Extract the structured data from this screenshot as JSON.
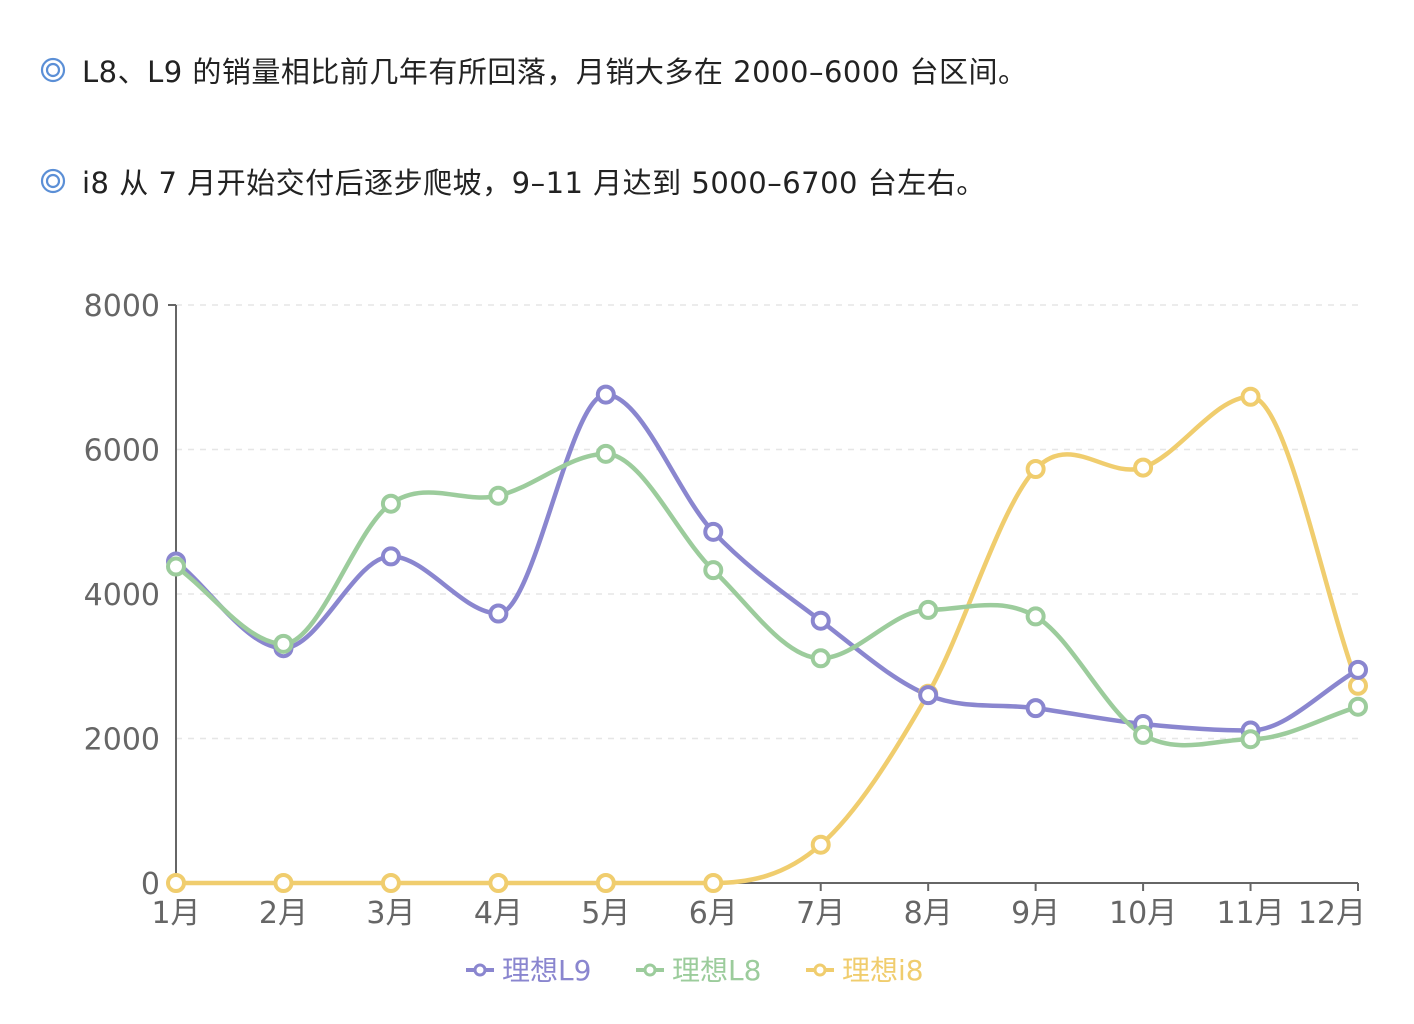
{
  "bullets": [
    {
      "icon": "double-circle-icon",
      "text": "L8、L9 的销量相比前几年有所回落，月销大多在 2000–6000 台区间。"
    },
    {
      "icon": "double-circle-icon",
      "text": "i8 从 7 月开始交付后逐步爬坡，9–11 月达到 5000–6700 台左右。"
    }
  ],
  "colors": {
    "bullet_icon": "#5b8fd6",
    "axis": "#666666",
    "grid": "#e6e6e6"
  },
  "chart_data": {
    "type": "line",
    "categories": [
      "1月",
      "2月",
      "3月",
      "4月",
      "5月",
      "6月",
      "7月",
      "8月",
      "9月",
      "10月",
      "11月",
      "12月"
    ],
    "ylim": [
      0,
      8000
    ],
    "yticks": [
      "0",
      "2000",
      "4000",
      "6000",
      "8000"
    ],
    "grid": true,
    "smooth": true,
    "legend_position": "bottom",
    "series": [
      {
        "name": "理想L9",
        "color": "#8a86cf",
        "values": [
          4450,
          3250,
          4520,
          3730,
          6760,
          4860,
          3630,
          2600,
          2420,
          2200,
          2110,
          2950
        ]
      },
      {
        "name": "理想L8",
        "color": "#9ccc9c",
        "values": [
          4380,
          3310,
          5250,
          5360,
          5940,
          4330,
          3110,
          3780,
          3690,
          2050,
          1990,
          2440
        ]
      },
      {
        "name": "理想i8",
        "color": "#f0cd6e",
        "values": [
          0,
          0,
          0,
          0,
          0,
          0,
          530,
          2620,
          5730,
          5750,
          6730,
          2730
        ]
      }
    ]
  }
}
